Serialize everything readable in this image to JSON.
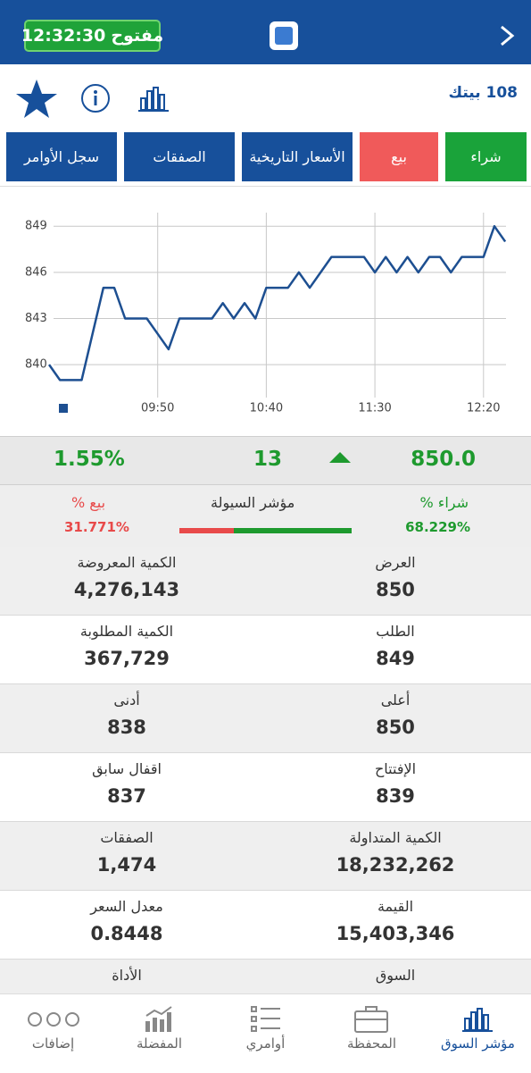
{
  "header": {
    "status": "مفتوح",
    "time": "12:32:30"
  },
  "stock_name": "108 بيتك",
  "tabs": [
    "شراء",
    "بيع",
    "الأسعار التاريخية",
    "الصفقات",
    "سجل الأوامر"
  ],
  "chart_data": {
    "type": "line",
    "x": [
      "09:00",
      "09:05",
      "09:10",
      "09:15",
      "09:20",
      "09:25",
      "09:30",
      "09:35",
      "09:40",
      "09:45",
      "09:50",
      "09:55",
      "10:00",
      "10:05",
      "10:10",
      "10:15",
      "10:20",
      "10:25",
      "10:30",
      "10:35",
      "10:40",
      "10:45",
      "10:50",
      "10:55",
      "11:00",
      "11:05",
      "11:10",
      "11:15",
      "11:20",
      "11:25",
      "11:30",
      "11:35",
      "11:40",
      "11:45",
      "11:50",
      "11:55",
      "12:00",
      "12:05",
      "12:10",
      "12:15",
      "12:20",
      "12:25",
      "12:30"
    ],
    "series": [
      {
        "color": "#1d4f91",
        "values": [
          840,
          839,
          839,
          839,
          842,
          845,
          845,
          843,
          843,
          843,
          842,
          841,
          843,
          843,
          843,
          843,
          844,
          843,
          844,
          843,
          845,
          845,
          845,
          846,
          845,
          846,
          847,
          847,
          847,
          847,
          846,
          847,
          846,
          847,
          846,
          847,
          847,
          846,
          847,
          847,
          847,
          849,
          848
        ]
      }
    ],
    "xlim": [
      "09:00",
      "12:32"
    ],
    "xticks": [
      "09:50",
      "10:40",
      "11:30",
      "12:20"
    ],
    "ylim": [
      837.8,
      850
    ],
    "yticks": [
      840,
      843,
      846,
      849
    ],
    "grid": true
  },
  "summary": {
    "price": "850.0",
    "change": "13",
    "change_pct": "1.55%"
  },
  "liquidity": {
    "buy_label": "شراء %",
    "buy_value": "68.229%",
    "title": "مؤشر السيولة",
    "sell_label": "بيع %",
    "sell_value": "31.771%"
  },
  "rows": [
    [
      {
        "label": "العرض",
        "value": "850"
      },
      {
        "label": "الكمية المعروضة",
        "value": "4,276,143"
      }
    ],
    [
      {
        "label": "الطلب",
        "value": "849"
      },
      {
        "label": "الكمية المطلوبة",
        "value": "367,729"
      }
    ],
    [
      {
        "label": "أعلى",
        "value": "850"
      },
      {
        "label": "أدنى",
        "value": "838"
      }
    ],
    [
      {
        "label": "الإفتتاح",
        "value": "839"
      },
      {
        "label": "اقفال سابق",
        "value": "837"
      }
    ],
    [
      {
        "label": "الكمية المتداولة",
        "value": "18,232,262"
      },
      {
        "label": "الصفقات",
        "value": "1,474"
      }
    ],
    [
      {
        "label": "القيمة",
        "value": "15,403,346"
      },
      {
        "label": "معدل السعر",
        "value": "0.8448"
      }
    ],
    [
      {
        "label": "السوق"
      },
      {
        "label": "الأداة"
      }
    ]
  ],
  "nav": [
    "مؤشر السوق",
    "المحفظة",
    "أوامري",
    "المفضلة",
    "إضافات"
  ]
}
